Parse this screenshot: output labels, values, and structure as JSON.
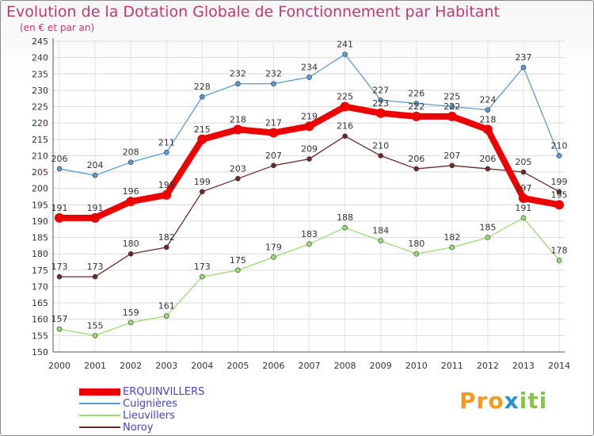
{
  "title": "Evolution de la Dotation Globale de Fonctionnement par Habitant",
  "subtitle": "(en € et par an)",
  "logo": {
    "p1": "Pro",
    "p2": "x",
    "p3": "iti"
  },
  "chart_data": {
    "type": "line",
    "x": [
      2000,
      2001,
      2002,
      2003,
      2004,
      2005,
      2006,
      2007,
      2008,
      2009,
      2010,
      2011,
      2012,
      2013,
      2014
    ],
    "ylim": [
      150,
      245
    ],
    "ytick_step": 5,
    "grid": true,
    "legend_position": "bottom-left",
    "series": [
      {
        "name": "ERQUINVILLERS",
        "color": "#ee0000",
        "emphasis": true,
        "values": [
          191,
          191,
          196,
          198,
          215,
          218,
          217,
          219,
          225,
          223,
          222,
          222,
          218,
          197,
          195
        ]
      },
      {
        "name": "Cuignières",
        "color": "#5b9bd5",
        "emphasis": false,
        "values": [
          206,
          204,
          208,
          211,
          228,
          232,
          232,
          234,
          241,
          227,
          226,
          225,
          224,
          237,
          210
        ]
      },
      {
        "name": "Lieuvillers",
        "color": "#9bdc6e",
        "emphasis": false,
        "values": [
          157,
          155,
          159,
          161,
          173,
          175,
          179,
          183,
          188,
          184,
          180,
          182,
          185,
          191,
          178
        ]
      },
      {
        "name": "Noroy",
        "color": "#6b2a2a",
        "emphasis": false,
        "values": [
          173,
          173,
          180,
          182,
          199,
          203,
          207,
          209,
          216,
          210,
          206,
          207,
          206,
          205,
          199
        ]
      }
    ]
  }
}
